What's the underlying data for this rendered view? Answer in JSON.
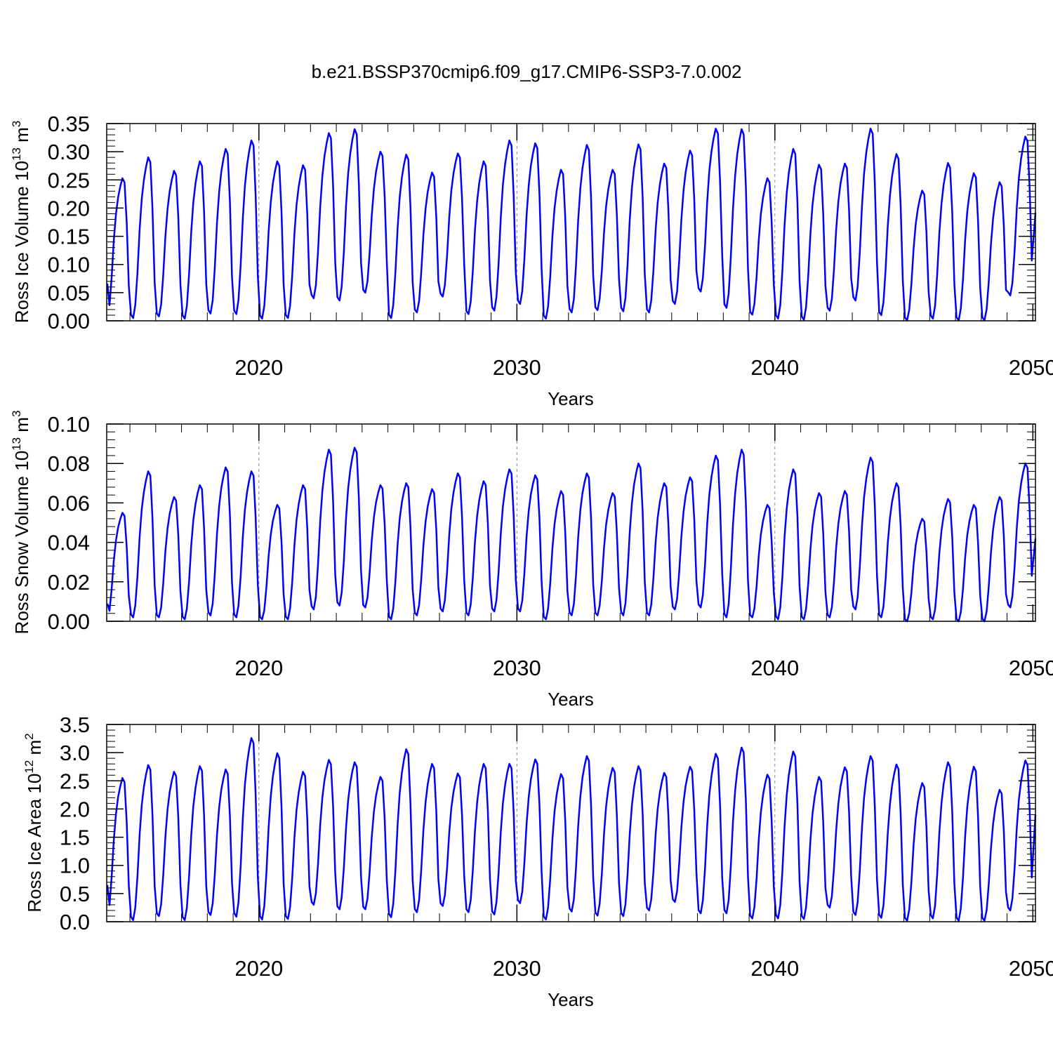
{
  "figure": {
    "title": "b.e21.BSSP370cmip6.f09_g17.CMIP6-SSP3-7.0.002"
  },
  "chart_data": [
    {
      "type": "line",
      "ylabel_main": "Ross Ice Volume 10",
      "ylabel_exp": "13",
      "ylabel_unit": " m",
      "ylabel_unit_exp": "3",
      "xlabel": "Years",
      "xlim": [
        2014.1,
        2050.1
      ],
      "ylim": [
        0,
        0.35
      ],
      "x_ticks": [
        2020,
        2030,
        2040,
        2050
      ],
      "x_tick_labels": [
        "2020",
        "2030",
        "2040",
        "2050"
      ],
      "y_ticks": [
        0,
        0.05,
        0.1,
        0.15,
        0.2,
        0.25,
        0.3,
        0.35
      ],
      "y_tick_labels": [
        "0.00",
        "0.05",
        "0.10",
        "0.15",
        "0.20",
        "0.25",
        "0.30",
        "0.35"
      ],
      "y_minor_step": 0.01,
      "reference_lines_x": [
        2020,
        2030,
        2040
      ],
      "line_color": "#0000ff",
      "annual_peaks": [
        0.253,
        0.29,
        0.266,
        0.283,
        0.305,
        0.32,
        0.283,
        0.276,
        0.333,
        0.34,
        0.3,
        0.295,
        0.263,
        0.297,
        0.283,
        0.32,
        0.315,
        0.268,
        0.312,
        0.268,
        0.313,
        0.279,
        0.302,
        0.341,
        0.34,
        0.253,
        0.305,
        0.277,
        0.279,
        0.341,
        0.296,
        0.231,
        0.28,
        0.262,
        0.246,
        0.327
      ],
      "annual_minima": [
        0.008,
        0.005,
        0.008,
        0.004,
        0.013,
        0.012,
        0.004,
        0.005,
        0.04,
        0.036,
        0.05,
        0.005,
        0.015,
        0.043,
        0.012,
        0.018,
        0.03,
        0.004,
        0.015,
        0.019,
        0.017,
        0.015,
        0.03,
        0.052,
        0.023,
        0.011,
        0.004,
        0.002,
        0.018,
        0.036,
        0.01,
        0.001,
        0.004,
        0.001,
        0.001,
        0.045
      ],
      "start_value": 0.066,
      "end_value": 0.192
    },
    {
      "type": "line",
      "ylabel_main": "Ross Snow Volume 10",
      "ylabel_exp": "13",
      "ylabel_unit": " m",
      "ylabel_unit_exp": "3",
      "xlabel": "Years",
      "xlim": [
        2014.1,
        2050.1
      ],
      "ylim": [
        0,
        0.1
      ],
      "x_ticks": [
        2020,
        2030,
        2040,
        2050
      ],
      "x_tick_labels": [
        "2020",
        "2030",
        "2040",
        "2050"
      ],
      "y_ticks": [
        0,
        0.02,
        0.04,
        0.06,
        0.08,
        0.1
      ],
      "y_tick_labels": [
        "0.00",
        "0.02",
        "0.04",
        "0.06",
        "0.08",
        "0.10"
      ],
      "y_minor_step": 0.004,
      "reference_lines_x": [
        2020,
        2030,
        2040
      ],
      "line_color": "#0000ff",
      "annual_peaks": [
        0.055,
        0.076,
        0.063,
        0.069,
        0.078,
        0.076,
        0.059,
        0.069,
        0.087,
        0.088,
        0.069,
        0.07,
        0.067,
        0.075,
        0.071,
        0.077,
        0.074,
        0.066,
        0.075,
        0.065,
        0.08,
        0.07,
        0.073,
        0.084,
        0.087,
        0.059,
        0.077,
        0.065,
        0.066,
        0.083,
        0.07,
        0.052,
        0.062,
        0.059,
        0.063,
        0.08
      ],
      "annual_minima": [
        0.001,
        0.002,
        0.002,
        0.001,
        0.003,
        0.002,
        0.001,
        0.001,
        0.006,
        0.008,
        0.007,
        0.001,
        0.003,
        0.005,
        0.003,
        0.005,
        0.005,
        0.001,
        0.003,
        0.003,
        0.003,
        0.003,
        0.006,
        0.007,
        0.002,
        0.002,
        0.001,
        0.001,
        0.002,
        0.006,
        0.002,
        0.0,
        0.001,
        0.0,
        0.0,
        0.007
      ],
      "start_value": 0.009,
      "end_value": 0.042
    },
    {
      "type": "line",
      "ylabel_main": "Ross Ice Area 10",
      "ylabel_exp": "12",
      "ylabel_unit": " m",
      "ylabel_unit_exp": "2",
      "xlabel": "Years",
      "xlim": [
        2014.1,
        2050.1
      ],
      "ylim": [
        0,
        3.5
      ],
      "x_ticks": [
        2020,
        2030,
        2040,
        2050
      ],
      "x_tick_labels": [
        "2020",
        "2030",
        "2040",
        "2050"
      ],
      "y_ticks": [
        0,
        0.5,
        1,
        1.5,
        2,
        2.5,
        3,
        3.5
      ],
      "y_tick_labels": [
        "0.0",
        "0.5",
        "1.0",
        "1.5",
        "2.0",
        "2.5",
        "3.0",
        "3.5"
      ],
      "y_minor_step": 0.1,
      "reference_lines_x": [
        2020,
        2030,
        2040
      ],
      "line_color": "#0000ff",
      "annual_peaks": [
        2.55,
        2.78,
        2.66,
        2.76,
        2.7,
        3.26,
        2.99,
        2.66,
        2.87,
        2.83,
        2.57,
        3.06,
        2.8,
        2.63,
        2.8,
        2.8,
        2.88,
        2.62,
        2.94,
        2.73,
        2.76,
        2.64,
        2.75,
        2.98,
        3.09,
        2.61,
        3.02,
        2.57,
        2.74,
        2.94,
        2.79,
        2.46,
        2.83,
        2.75,
        2.34,
        2.86
      ],
      "annual_minima": [
        0.1,
        0.03,
        0.1,
        0.03,
        0.12,
        0.09,
        0.04,
        0.05,
        0.3,
        0.22,
        0.22,
        0.08,
        0.17,
        0.28,
        0.17,
        0.13,
        0.33,
        0.04,
        0.18,
        0.11,
        0.1,
        0.2,
        0.35,
        0.15,
        0.15,
        0.06,
        0.06,
        0.05,
        0.25,
        0.12,
        0.07,
        0.02,
        0.06,
        0.02,
        0.02,
        0.2
      ],
      "start_value": 0.65,
      "end_value": 1.9
    }
  ]
}
